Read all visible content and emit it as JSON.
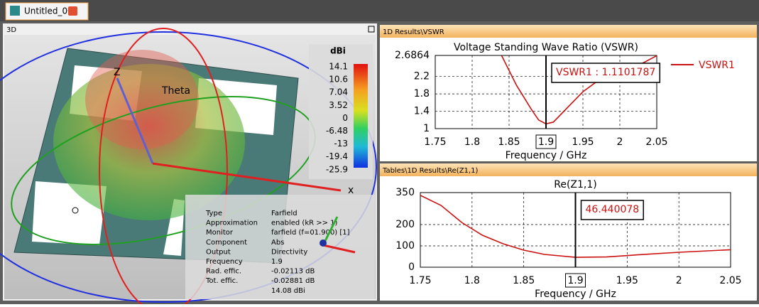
{
  "tab": {
    "title": "Untitled_0*"
  },
  "view_3d": {
    "title": "3D",
    "axis_z": "Z",
    "axis_theta": "Theta",
    "axis_x": "x",
    "colorbar": {
      "title": "dBi",
      "ticks": [
        14.1,
        10.6,
        7.04,
        3.52,
        0,
        -6.48,
        -13,
        -19.4,
        -25.9
      ]
    },
    "info": [
      [
        "Type",
        "Farfield"
      ],
      [
        "Approximation",
        "enabled (kR >> 1)"
      ],
      [
        "Monitor",
        "farfield (f=01.900) [1]"
      ],
      [
        "Component",
        "Abs"
      ],
      [
        "Output",
        "Directivity"
      ],
      [
        "Frequency",
        "1.9"
      ],
      [
        "Rad. effic.",
        "-0.02113 dB"
      ],
      [
        "Tot. effic.",
        "-0.02881 dB"
      ],
      [
        "14.08 dBi"
      ]
    ]
  },
  "panels": [
    "1D Results\\VSWR",
    "Tables\\1D Results\\Re(Z1,1)"
  ],
  "chart_data": [
    {
      "type": "line",
      "title": "Voltage Standing Wave Ratio (VSWR)",
      "x_label": "Frequency / GHz",
      "x": [
        1.84,
        1.86,
        1.88,
        1.89,
        1.9,
        1.91,
        1.93,
        1.95,
        1.97,
        2.0,
        2.03,
        2.05
      ],
      "series": [
        {
          "name": "VSWR1",
          "color": "#cc1111",
          "values": [
            2.68,
            2.0,
            1.45,
            1.2,
            1.11,
            1.15,
            1.5,
            1.85,
            2.1,
            2.3,
            2.5,
            2.68
          ]
        }
      ],
      "xlim": [
        1.75,
        2.05
      ],
      "xticks": [
        1.75,
        1.8,
        1.85,
        1.9,
        1.95,
        2,
        2.05
      ],
      "ylim": [
        1,
        2.6864
      ],
      "yticks": [
        1,
        1.4,
        1.8,
        2.2,
        2.6864
      ],
      "grid": true,
      "marker": {
        "x": 1.9,
        "label": "VSWR1 : 1.1101787"
      }
    },
    {
      "type": "line",
      "title": "Re(Z1,1)",
      "x_label": "Frequency / GHz",
      "x": [
        1.75,
        1.77,
        1.79,
        1.81,
        1.83,
        1.85,
        1.87,
        1.9,
        1.93,
        1.96,
        2.0,
        2.05
      ],
      "series": [
        {
          "color": "#cc1111",
          "values": [
            337,
            290,
            210,
            150,
            110,
            80,
            60,
            46.44,
            48,
            58,
            70,
            82
          ]
        }
      ],
      "xlim": [
        1.75,
        2.05
      ],
      "xticks": [
        1.75,
        1.8,
        1.85,
        1.9,
        1.95,
        2,
        2.05
      ],
      "ylim": [
        0,
        350
      ],
      "yticks": [
        0,
        100,
        200,
        350
      ],
      "grid": true,
      "marker": {
        "x": 1.9,
        "label": "46.440078"
      }
    }
  ]
}
